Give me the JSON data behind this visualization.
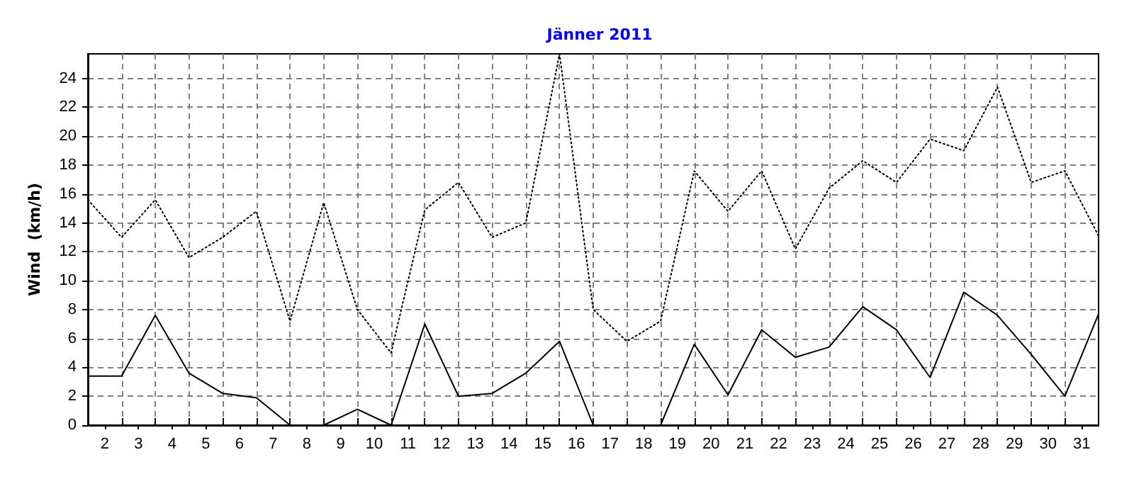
{
  "chart_data": {
    "type": "line",
    "title": "Jänner 2011",
    "ylabel": "Wind  (km/h)",
    "x": [
      1.5,
      2.5,
      3.5,
      4.5,
      5.5,
      6.5,
      7.5,
      8.5,
      9.5,
      10.5,
      11.5,
      12.5,
      13.5,
      14.5,
      15.5,
      16.5,
      17.5,
      18.5,
      19.5,
      20.5,
      21.5,
      22.5,
      23.5,
      24.5,
      25.5,
      26.5,
      27.5,
      28.5,
      29.5,
      30.5,
      31.5
    ],
    "series": [
      {
        "color": "#000000",
        "line_style": "solid",
        "values": [
          3.4,
          3.4,
          7.6,
          3.6,
          2.2,
          1.9,
          0,
          0,
          1.1,
          0,
          7.0,
          2.0,
          2.2,
          3.6,
          5.8,
          0,
          0,
          0,
          5.6,
          2.1,
          6.6,
          4.7,
          5.4,
          8.2,
          6.6,
          3.3,
          9.2,
          7.6,
          4.9,
          2.0,
          7.7
        ]
      },
      {
        "color": "#000000",
        "line_style": "dotted",
        "values": [
          15.6,
          13.0,
          15.6,
          11.6,
          13.0,
          14.8,
          7.2,
          15.4,
          8.0,
          5.0,
          14.9,
          16.8,
          13.0,
          14.0,
          25.7,
          8.0,
          5.8,
          7.2,
          17.6,
          14.8,
          17.6,
          12.2,
          16.4,
          18.3,
          16.8,
          19.8,
          19.0,
          23.4,
          16.8,
          17.6,
          13.1
        ]
      }
    ],
    "xlim": [
      1.5,
      31.5
    ],
    "xticks": [
      2,
      3,
      4,
      5,
      6,
      7,
      8,
      9,
      10,
      11,
      12,
      13,
      14,
      15,
      16,
      17,
      18,
      19,
      20,
      21,
      22,
      23,
      24,
      25,
      26,
      27,
      28,
      29,
      30,
      31,
      {
        "value": 2.5,
        "label": null
      },
      {
        "value": 3.5,
        "label": null
      },
      {
        "value": 4.5,
        "label": null
      },
      {
        "value": 5.5,
        "label": null
      },
      {
        "value": 6.5,
        "label": null
      },
      {
        "value": 7.5,
        "label": null
      },
      {
        "value": 8.5,
        "label": null
      },
      {
        "value": 9.5,
        "label": null
      },
      {
        "value": 10.5,
        "label": null
      },
      {
        "value": 11.5,
        "label": null
      },
      {
        "value": 12.5,
        "label": null
      },
      {
        "value": 13.5,
        "label": null
      },
      {
        "value": 14.5,
        "label": null
      },
      {
        "value": 15.5,
        "label": null
      },
      {
        "value": 16.5,
        "label": null
      },
      {
        "value": 17.5,
        "label": null
      },
      {
        "value": 18.5,
        "label": null
      },
      {
        "value": 19.5,
        "label": null
      },
      {
        "value": 20.5,
        "label": null
      },
      {
        "value": 21.5,
        "label": null
      },
      {
        "value": 22.5,
        "label": null
      },
      {
        "value": 23.5,
        "label": null
      },
      {
        "value": 24.5,
        "label": null
      },
      {
        "value": 25.5,
        "label": null
      },
      {
        "value": 26.5,
        "label": null
      },
      {
        "value": 27.5,
        "label": null
      },
      {
        "value": 28.5,
        "label": null
      },
      {
        "value": 29.5,
        "label": null
      },
      {
        "value": 30.5,
        "label": null
      }
    ],
    "ylim": [
      0,
      25.7
    ],
    "yticks": [
      0,
      2,
      4,
      6,
      8,
      10,
      12,
      14,
      16,
      18,
      20,
      22,
      24
    ],
    "grid": true,
    "marker": "none"
  }
}
